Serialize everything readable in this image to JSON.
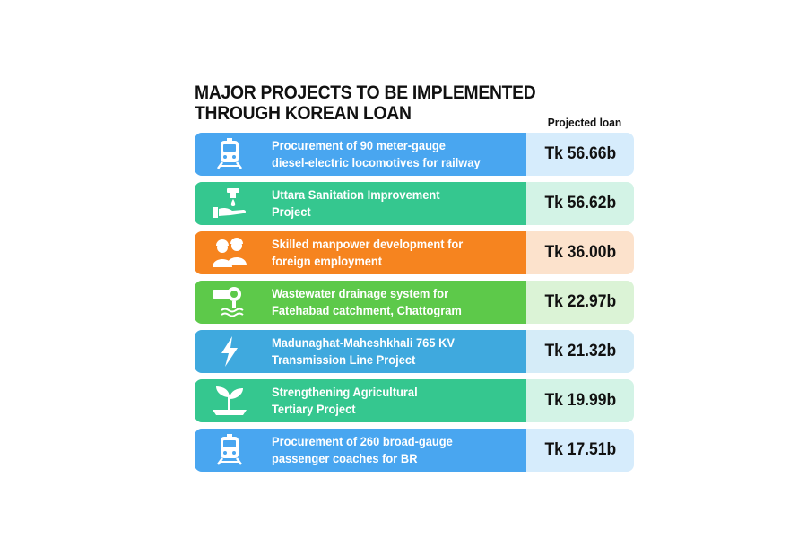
{
  "title": {
    "line1": "MAJOR PROJECTS TO BE IMPLEMENTED",
    "line2": "THROUGH KOREAN LOAN"
  },
  "column_header": "Projected loan",
  "projects": [
    {
      "line1": "Procurement of 90 meter-gauge",
      "line2": "diesel-electric locomotives for railway",
      "amount": "Tk 56.66b",
      "icon": "train-icon",
      "band_color": "#49A6F0",
      "amount_bg": "#D6ECFC"
    },
    {
      "line1": "Uttara Sanitation Improvement",
      "line2": "Project",
      "amount": "Tk 56.62b",
      "icon": "hand-water-icon",
      "band_color": "#35C78F",
      "amount_bg": "#D3F3E6"
    },
    {
      "line1": "Skilled manpower development for",
      "line2": "foreign employment",
      "amount": "Tk 36.00b",
      "icon": "workers-icon",
      "band_color": "#F6841F",
      "amount_bg": "#FCE2CC"
    },
    {
      "line1": "Wastewater drainage system for",
      "line2": "Fatehabad catchment, Chattogram",
      "amount": "Tk 22.97b",
      "icon": "drain-pipe-icon",
      "band_color": "#5DC94A",
      "amount_bg": "#DBF3D6"
    },
    {
      "line1": "Madunaghat-Maheshkhali 765 KV",
      "line2": "Transmission Line Project",
      "amount": "Tk 21.32b",
      "icon": "lightning-icon",
      "band_color": "#3FA9DE",
      "amount_bg": "#D5ECF8"
    },
    {
      "line1": "Strengthening Agricultural",
      "line2": "Tertiary Project",
      "amount": "Tk 19.99b",
      "icon": "plant-icon",
      "band_color": "#35C78F",
      "amount_bg": "#D3F3E6"
    },
    {
      "line1": "Procurement of 260 broad-gauge",
      "line2": "passenger coaches for BR",
      "amount": "Tk 17.51b",
      "icon": "train-icon",
      "band_color": "#49A6F0",
      "amount_bg": "#D6ECFC"
    }
  ],
  "chart_data": {
    "type": "table",
    "title": "MAJOR PROJECTS TO BE IMPLEMENTED THROUGH KOREAN LOAN",
    "columns": [
      "",
      "Projected loan"
    ],
    "categories": [
      "Procurement of 90 meter-gauge diesel-electric locomotives for railway",
      "Uttara Sanitation Improvement Project",
      "Skilled manpower development for foreign employment",
      "Wastewater drainage system for Fatehabad catchment, Chattogram",
      "Madunaghat-Maheshkhali 765 KV Transmission Line Project",
      "Strengthening Agricultural Tertiary Project",
      "Procurement of 260 broad-gauge passenger coaches for BR"
    ],
    "values": [
      56.66,
      56.62,
      36.0,
      22.97,
      21.32,
      19.99,
      17.51
    ],
    "unit": "Tk b"
  }
}
